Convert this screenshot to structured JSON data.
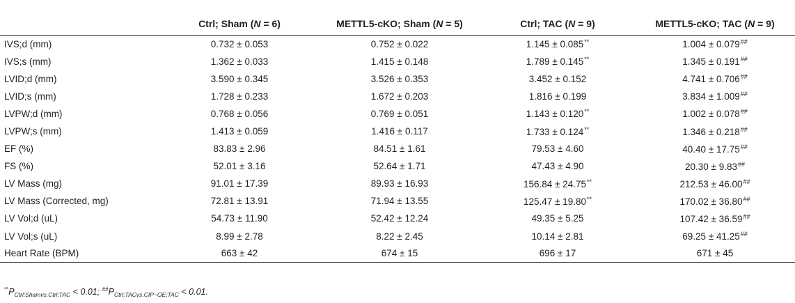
{
  "table": {
    "headers": [
      {
        "text": ""
      },
      {
        "text": "Ctrl; Sham (",
        "n_label": "N",
        "n_rest": " = 6)"
      },
      {
        "text": "METTL5-cKO; Sham (",
        "n_label": "N",
        "n_rest": " = 5)"
      },
      {
        "text": "Ctrl; TAC (",
        "n_label": "N",
        "n_rest": " = 9)"
      },
      {
        "text": "METTL5-cKO; TAC (",
        "n_label": "N",
        "n_rest": " = 9)"
      }
    ],
    "rows": [
      {
        "label": "IVS;d (mm)",
        "cells": [
          {
            "v": "0.732 ± 0.053",
            "m": ""
          },
          {
            "v": "0.752 ± 0.022",
            "m": ""
          },
          {
            "v": "1.145 ± 0.085",
            "m": "**"
          },
          {
            "v": "1.004 ± 0.079",
            "m": "##"
          }
        ]
      },
      {
        "label": "IVS;s (mm)",
        "cells": [
          {
            "v": "1.362 ± 0.033",
            "m": ""
          },
          {
            "v": "1.415 ± 0.148",
            "m": ""
          },
          {
            "v": "1.789 ± 0.145",
            "m": "**"
          },
          {
            "v": "1.345 ± 0.191",
            "m": "##"
          }
        ]
      },
      {
        "label": "LVID;d (mm)",
        "cells": [
          {
            "v": "3.590 ± 0.345",
            "m": ""
          },
          {
            "v": "3.526 ± 0.353",
            "m": ""
          },
          {
            "v": "3.452 ± 0.152",
            "m": ""
          },
          {
            "v": "4.741 ± 0.706",
            "m": "##"
          }
        ]
      },
      {
        "label": "LVID;s (mm)",
        "cells": [
          {
            "v": "1.728 ± 0.233",
            "m": ""
          },
          {
            "v": "1.672 ± 0.203",
            "m": ""
          },
          {
            "v": "1.816 ± 0.199",
            "m": ""
          },
          {
            "v": "3.834 ± 1.009",
            "m": "##"
          }
        ]
      },
      {
        "label": "LVPW;d (mm)",
        "cells": [
          {
            "v": "0.768 ± 0.056",
            "m": ""
          },
          {
            "v": "0.769 ± 0.051",
            "m": ""
          },
          {
            "v": "1.143 ± 0.120",
            "m": "**"
          },
          {
            "v": "1.002 ± 0.078",
            "m": "##"
          }
        ]
      },
      {
        "label": "LVPW;s (mm)",
        "cells": [
          {
            "v": "1.413 ± 0.059",
            "m": ""
          },
          {
            "v": "1.416 ± 0.117",
            "m": ""
          },
          {
            "v": "1.733 ± 0.124",
            "m": "**"
          },
          {
            "v": "1.346 ± 0.218",
            "m": "##"
          }
        ]
      },
      {
        "label": "EF (%)",
        "cells": [
          {
            "v": "83.83 ± 2.96",
            "m": ""
          },
          {
            "v": "84.51 ± 1.61",
            "m": ""
          },
          {
            "v": "79.53 ± 4.60",
            "m": ""
          },
          {
            "v": "40.40 ± 17.75",
            "m": "##"
          }
        ]
      },
      {
        "label": "FS (%)",
        "cells": [
          {
            "v": "52.01 ± 3.16",
            "m": ""
          },
          {
            "v": "52.64 ± 1.71",
            "m": ""
          },
          {
            "v": "47.43 ± 4.90",
            "m": ""
          },
          {
            "v": "20.30 ± 9.83",
            "m": "##"
          }
        ]
      },
      {
        "label": "LV Mass (mg)",
        "cells": [
          {
            "v": "91.01 ± 17.39",
            "m": ""
          },
          {
            "v": "89.93 ± 16.93",
            "m": ""
          },
          {
            "v": "156.84 ± 24.75",
            "m": "**"
          },
          {
            "v": "212.53 ± 46.00",
            "m": "##"
          }
        ]
      },
      {
        "label": "LV Mass (Corrected, mg)",
        "cells": [
          {
            "v": "72.81 ± 13.91",
            "m": ""
          },
          {
            "v": "71.94 ± 13.55",
            "m": ""
          },
          {
            "v": "125.47 ± 19.80",
            "m": "**"
          },
          {
            "v": "170.02 ± 36.80",
            "m": "##"
          }
        ]
      },
      {
        "label": "LV Vol;d (uL)",
        "cells": [
          {
            "v": "54.73 ± 11.90",
            "m": ""
          },
          {
            "v": "52.42 ± 12.24",
            "m": ""
          },
          {
            "v": "49.35 ± 5.25",
            "m": ""
          },
          {
            "v": "107.42 ± 36.59",
            "m": "##"
          }
        ]
      },
      {
        "label": "LV Vol;s (uL)",
        "cells": [
          {
            "v": "8.99 ± 2.78",
            "m": ""
          },
          {
            "v": "8.22 ± 2.45",
            "m": ""
          },
          {
            "v": "10.14 ± 2.81",
            "m": ""
          },
          {
            "v": "69.25 ± 41.25",
            "m": "##"
          }
        ]
      },
      {
        "label": "Heart Rate (BPM)",
        "cells": [
          {
            "v": "663 ± 42",
            "m": ""
          },
          {
            "v": "674 ± 15",
            "m": ""
          },
          {
            "v": "696 ± 17",
            "m": ""
          },
          {
            "v": "671 ± 45",
            "m": ""
          }
        ]
      }
    ]
  },
  "footnote": {
    "mark1": "**",
    "p1": "P",
    "p1_sub": "Ctrl;Shamvs.Ctrl;TAC",
    "t1": " < 0.01; ",
    "mark2": "##",
    "p2": "P",
    "p2_sub": "Ctrl;TACvs.CIP−OE;TAC",
    "t2": " < 0.01."
  }
}
